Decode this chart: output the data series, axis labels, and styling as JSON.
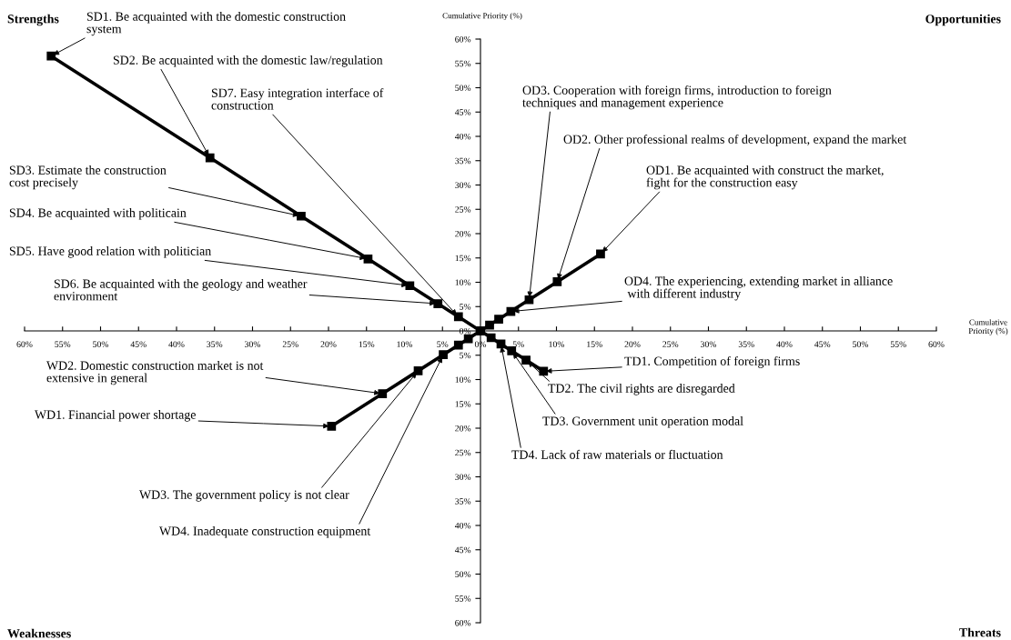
{
  "chart_data": {
    "type": "line",
    "xlabel": "Cumulative\nPriority (%)",
    "ylabel": "Cumulative Priority (%)",
    "marker": "square",
    "line_style": "solid",
    "grid": false,
    "xlim": [
      -60,
      60
    ],
    "ylim": [
      -60,
      60
    ],
    "xticks": [
      {
        "value": -60,
        "label": "60%"
      },
      {
        "value": -55,
        "label": "55%"
      },
      {
        "value": -50,
        "label": "50%"
      },
      {
        "value": -45,
        "label": "45%"
      },
      {
        "value": -40,
        "label": "40%"
      },
      {
        "value": -35,
        "label": "35%"
      },
      {
        "value": -30,
        "label": "30%"
      },
      {
        "value": -25,
        "label": "25%"
      },
      {
        "value": -20,
        "label": "20%"
      },
      {
        "value": -15,
        "label": "15%"
      },
      {
        "value": -10,
        "label": "10%"
      },
      {
        "value": -5,
        "label": "5%"
      },
      {
        "value": 0,
        "label": "0%"
      },
      {
        "value": 5,
        "label": "5%"
      },
      {
        "value": 10,
        "label": "10%"
      },
      {
        "value": 15,
        "label": "15%"
      },
      {
        "value": 20,
        "label": "20%"
      },
      {
        "value": 25,
        "label": "25%"
      },
      {
        "value": 30,
        "label": "30%"
      },
      {
        "value": 35,
        "label": "35%"
      },
      {
        "value": 40,
        "label": "40%"
      },
      {
        "value": 45,
        "label": "45%"
      },
      {
        "value": 50,
        "label": "50%"
      },
      {
        "value": 55,
        "label": "55%"
      },
      {
        "value": 60,
        "label": "60%"
      }
    ],
    "yticks": [
      {
        "value": -60,
        "label": "60%"
      },
      {
        "value": -55,
        "label": "55%"
      },
      {
        "value": -50,
        "label": "50%"
      },
      {
        "value": -45,
        "label": "45%"
      },
      {
        "value": -40,
        "label": "40%"
      },
      {
        "value": -35,
        "label": "35%"
      },
      {
        "value": -30,
        "label": "30%"
      },
      {
        "value": -25,
        "label": "25%"
      },
      {
        "value": -20,
        "label": "20%"
      },
      {
        "value": -15,
        "label": "15%"
      },
      {
        "value": -10,
        "label": "10%"
      },
      {
        "value": -5,
        "label": "5%"
      },
      {
        "value": 0,
        "label": "0%"
      },
      {
        "value": 5,
        "label": "5%"
      },
      {
        "value": 10,
        "label": "10%"
      },
      {
        "value": 15,
        "label": "15%"
      },
      {
        "value": 20,
        "label": "20%"
      },
      {
        "value": 25,
        "label": "25%"
      },
      {
        "value": 30,
        "label": "30%"
      },
      {
        "value": 35,
        "label": "35%"
      },
      {
        "value": 40,
        "label": "40%"
      },
      {
        "value": 45,
        "label": "45%"
      },
      {
        "value": 50,
        "label": "50%"
      },
      {
        "value": 55,
        "label": "55%"
      },
      {
        "value": 60,
        "label": "60%"
      }
    ],
    "series": [
      {
        "color": "#000000",
        "x": [
          -56.5,
          -35.6,
          -23.6,
          -14.8,
          -9.3,
          -5.6,
          -2.9,
          0
        ],
        "values": [
          56.5,
          35.6,
          23.6,
          14.8,
          9.3,
          5.6,
          2.9,
          0
        ]
      },
      {
        "color": "#000000",
        "x": [
          15.8,
          10.1,
          6.4,
          4.0,
          2.4,
          1.2,
          0
        ],
        "values": [
          15.8,
          10.1,
          6.4,
          4.0,
          2.4,
          1.2,
          0
        ]
      },
      {
        "color": "#000000",
        "x": [
          -19.6,
          -12.9,
          -8.2,
          -4.9,
          -2.9,
          -1.6,
          0
        ],
        "values": [
          -19.6,
          -12.9,
          -8.2,
          -4.9,
          -2.9,
          -1.6,
          0
        ]
      },
      {
        "color": "#000000",
        "x": [
          8.3,
          6.0,
          4.1,
          2.7,
          1.4,
          0
        ],
        "values": [
          -8.3,
          -6.0,
          -4.1,
          -2.7,
          -1.4,
          0
        ]
      }
    ],
    "annotations": [
      "Strengths",
      "Opportunities",
      "Weaknesses",
      "Threats",
      {
        "text": "SD1. Be acquainted with the domestic construction\nsystem",
        "x": -56.5,
        "y": 56.5
      },
      {
        "text": "SD2. Be acquainted with the domestic law/regulation",
        "x": -35.6,
        "y": 35.6
      },
      {
        "text": "SD7. Easy integration interface of\nconstruction",
        "x": -2.9,
        "y": 2.9
      },
      {
        "text": "SD3. Estimate the construction\ncost precisely",
        "x": -23.6,
        "y": 23.6
      },
      {
        "text": "SD4. Be acquainted with politicain",
        "x": -14.8,
        "y": 14.8
      },
      {
        "text": "SD5. Have good relation with politician",
        "x": -9.3,
        "y": 9.3
      },
      {
        "text": "SD6. Be acquainted with the geology and weather\nenvironment",
        "x": -5.6,
        "y": 5.6
      },
      {
        "text": "OD3. Cooperation with foreign firms, introduction to foreign\ntechniques and management experience",
        "x": 6.4,
        "y": 6.4
      },
      {
        "text": "OD2. Other professional realms of development, expand the market",
        "x": 10.1,
        "y": 10.1
      },
      {
        "text": "OD1. Be acquainted with construct the market,\nfight for the construction easy",
        "x": 15.8,
        "y": 15.8
      },
      {
        "text": "OD4. The experiencing, extending market in alliance\n with different industry",
        "x": 4.0,
        "y": 4.0
      },
      {
        "text": "WD2. Domestic construction market is not\nextensive in general",
        "x": -12.9,
        "y": -12.9
      },
      {
        "text": "WD1. Financial power shortage",
        "x": -19.6,
        "y": -19.6
      },
      {
        "text": "WD3. The government policy is not clear",
        "x": -8.2,
        "y": -8.2
      },
      {
        "text": "WD4. Inadequate construction equipment",
        "x": -4.9,
        "y": -4.9
      },
      {
        "text": "TD1. Competition of foreign firms",
        "x": 8.3,
        "y": -8.3
      },
      {
        "text": "TD2. The civil rights are disregarded",
        "x": 6.0,
        "y": -6.0
      },
      {
        "text": "TD3. Government unit operation modal",
        "x": 4.1,
        "y": -4.1
      },
      {
        "text": "TD4. Lack of raw materials or fluctuation",
        "x": 2.7,
        "y": -2.7
      }
    ]
  }
}
